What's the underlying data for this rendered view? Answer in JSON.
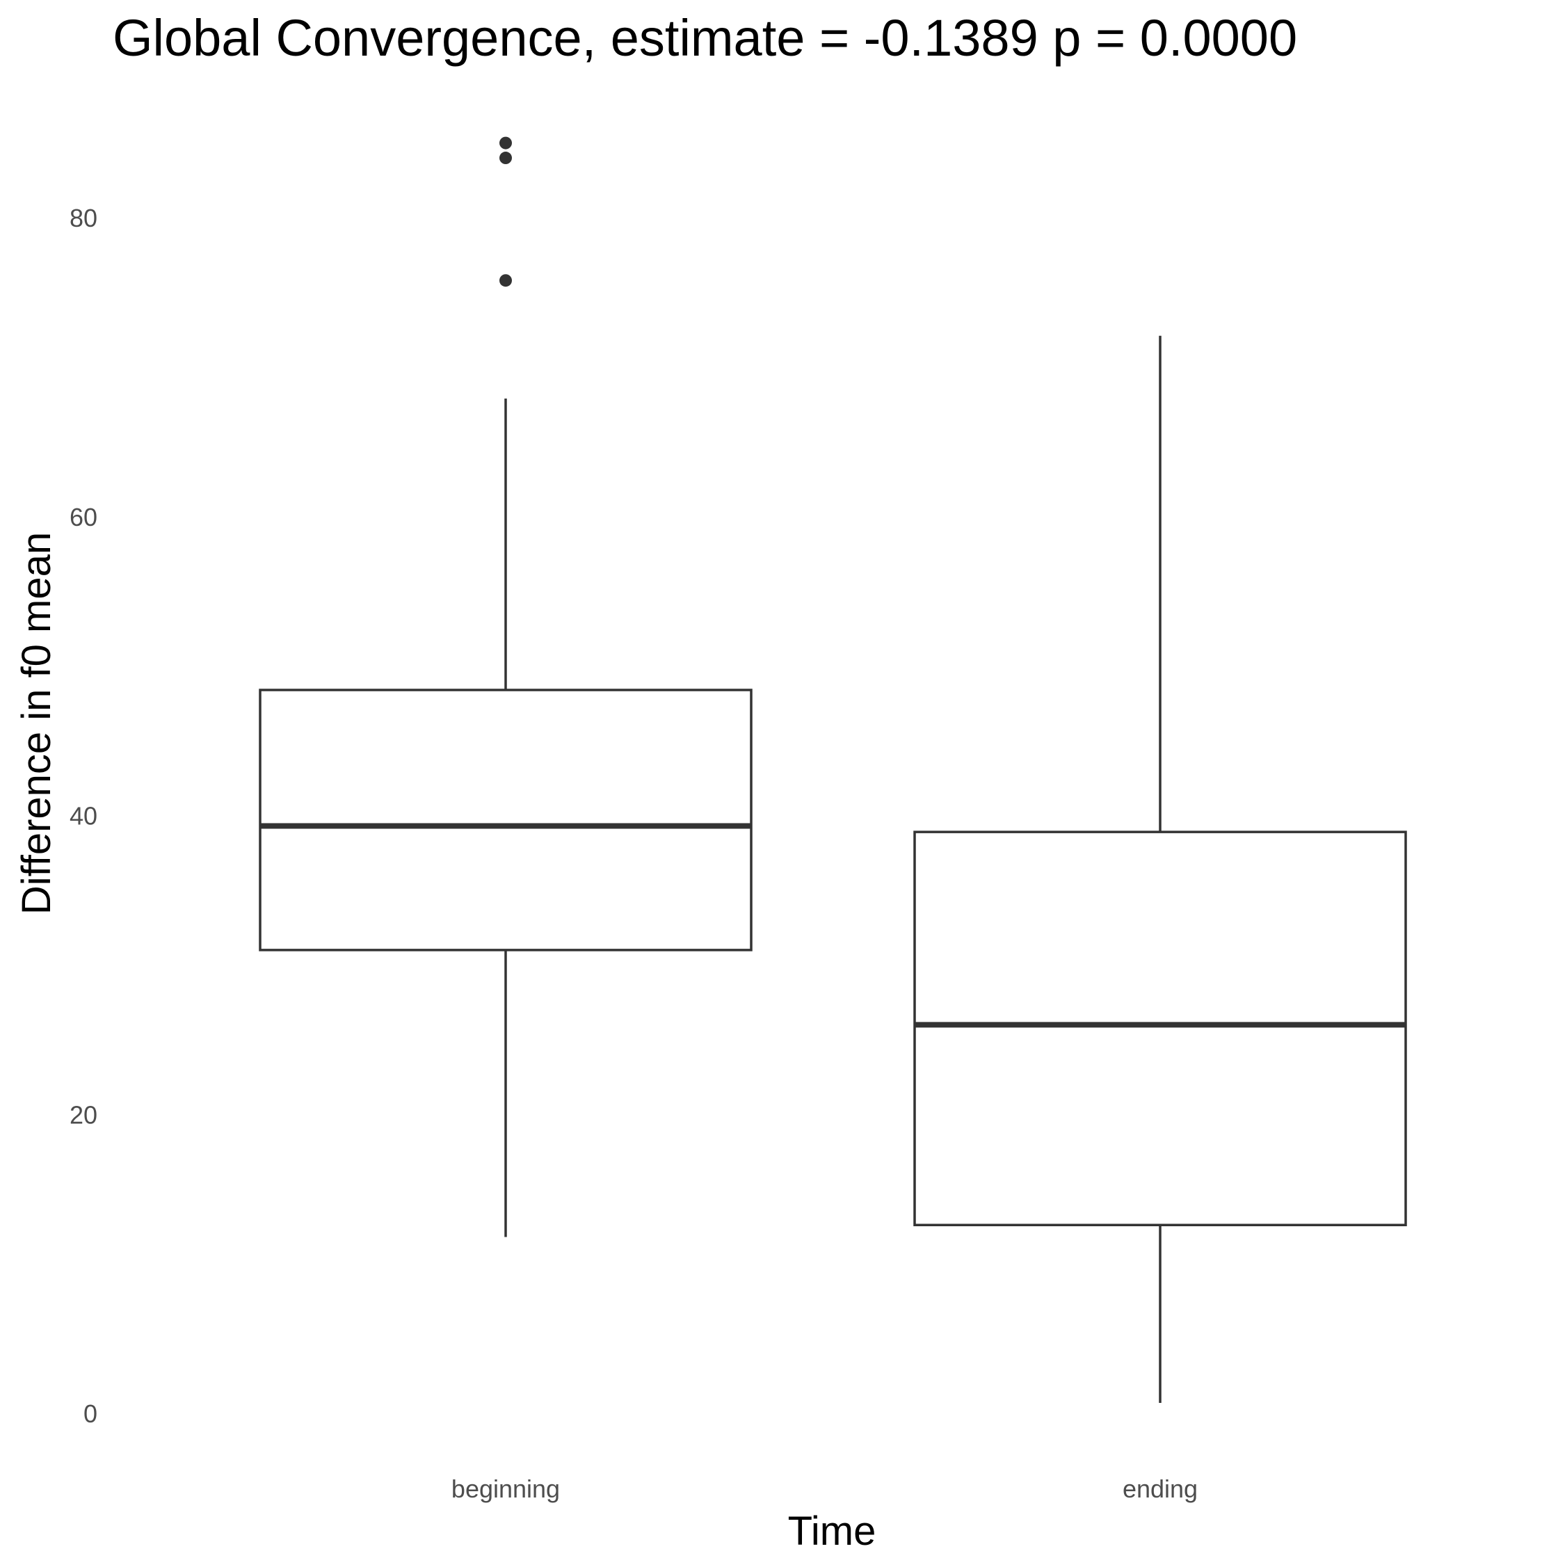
{
  "chart_data": {
    "type": "box",
    "title": "Global Convergence, estimate = -0.1389 p = 0.0000",
    "xlabel": "Time",
    "ylabel": "Difference in f0 mean",
    "ylim": [
      -1.5,
      85.5
    ],
    "yticks": [
      0,
      20,
      40,
      60,
      80
    ],
    "grid": false,
    "categories": [
      "beginning",
      "ending"
    ],
    "boxes": [
      {
        "category": "beginning",
        "whisker_low": 11.8,
        "q1": 31.0,
        "median": 39.3,
        "q3": 48.4,
        "whisker_high": 67.9,
        "outliers": [
          75.8,
          84.0,
          85.0
        ]
      },
      {
        "category": "ending",
        "whisker_low": 0.7,
        "q1": 12.6,
        "median": 26.0,
        "q3": 38.9,
        "whisker_high": 72.1,
        "outliers": []
      }
    ]
  }
}
